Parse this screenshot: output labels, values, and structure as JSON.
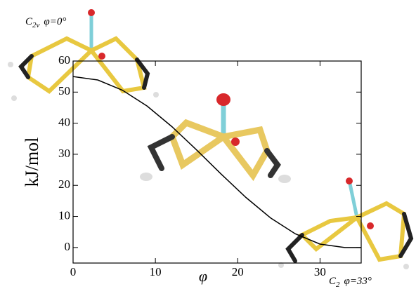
{
  "chart_data": {
    "type": "line",
    "x_label": "φ",
    "y_label": "kJ/mol",
    "x": [
      0,
      3,
      6,
      9,
      12,
      15,
      18,
      21,
      24,
      27,
      30,
      33,
      35
    ],
    "series": [
      {
        "color": "#000000",
        "values": [
          55,
          53.9,
          50.6,
          45.5,
          38.9,
          31.4,
          23.6,
          16.1,
          9.5,
          4.4,
          1.1,
          0,
          0
        ]
      }
    ],
    "xlim": [
      0,
      35
    ],
    "ylim": [
      -5,
      60
    ],
    "xticks": [
      0,
      10,
      20,
      30
    ],
    "yticks": [
      0,
      10,
      20,
      30,
      40,
      50,
      60
    ],
    "annotations": [
      {
        "main": "C",
        "sub": "2v",
        "rest": "φ=0°"
      },
      {
        "main": "C",
        "sub": "2",
        "rest": "φ=33°"
      }
    ]
  }
}
